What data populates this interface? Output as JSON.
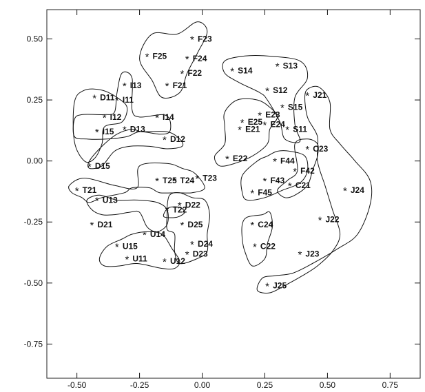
{
  "chart_data": {
    "type": "scatter",
    "title": "",
    "xlabel": "",
    "ylabel": "",
    "xlim": [
      -0.62,
      0.87
    ],
    "ylim": [
      -0.89,
      0.62
    ],
    "x_ticks": [
      {
        "value": -0.5,
        "label": "-0.50"
      },
      {
        "value": -0.25,
        "label": "-0.25"
      },
      {
        "value": 0.0,
        "label": "0.00"
      },
      {
        "value": 0.25,
        "label": "0.25"
      },
      {
        "value": 0.5,
        "label": "0.50"
      },
      {
        "value": 0.75,
        "label": "0.75"
      }
    ],
    "y_ticks": [
      {
        "value": 0.5,
        "label": "0.50"
      },
      {
        "value": 0.25,
        "label": "0.25"
      },
      {
        "value": 0.0,
        "label": "0.00"
      },
      {
        "value": -0.25,
        "label": "-0.25"
      },
      {
        "value": -0.5,
        "label": "-0.50"
      },
      {
        "value": -0.75,
        "label": "-0.75"
      }
    ],
    "grid": false,
    "marker": "*",
    "points": [
      {
        "label": "F23",
        "x": -0.04,
        "y": 0.5
      },
      {
        "label": "F25",
        "x": -0.22,
        "y": 0.43
      },
      {
        "label": "F24",
        "x": -0.06,
        "y": 0.42
      },
      {
        "label": "F22",
        "x": -0.08,
        "y": 0.36
      },
      {
        "label": "F21",
        "x": -0.14,
        "y": 0.31
      },
      {
        "label": "S14",
        "x": 0.12,
        "y": 0.37
      },
      {
        "label": "S13",
        "x": 0.3,
        "y": 0.39
      },
      {
        "label": "S12",
        "x": 0.26,
        "y": 0.29
      },
      {
        "label": "S15",
        "x": 0.32,
        "y": 0.22
      },
      {
        "label": "S11",
        "x": 0.34,
        "y": 0.13
      },
      {
        "label": "J21",
        "x": 0.42,
        "y": 0.27
      },
      {
        "label": "D11",
        "x": -0.43,
        "y": 0.26
      },
      {
        "label": "I13",
        "x": -0.31,
        "y": 0.31
      },
      {
        "label": "I11",
        "x": -0.34,
        "y": 0.25
      },
      {
        "label": "I12",
        "x": -0.39,
        "y": 0.18
      },
      {
        "label": "I14",
        "x": -0.18,
        "y": 0.18
      },
      {
        "label": "I15",
        "x": -0.42,
        "y": 0.12
      },
      {
        "label": "D13",
        "x": -0.31,
        "y": 0.13
      },
      {
        "label": "D12",
        "x": -0.15,
        "y": 0.09
      },
      {
        "label": "D15",
        "x": -0.45,
        "y": -0.02
      },
      {
        "label": "E23",
        "x": 0.23,
        "y": 0.19
      },
      {
        "label": "E25",
        "x": 0.16,
        "y": 0.16
      },
      {
        "label": "E24",
        "x": 0.25,
        "y": 0.15
      },
      {
        "label": "E21",
        "x": 0.15,
        "y": 0.13
      },
      {
        "label": "E22",
        "x": 0.1,
        "y": 0.01
      },
      {
        "label": "C23",
        "x": 0.42,
        "y": 0.05
      },
      {
        "label": "F44",
        "x": 0.29,
        "y": 0.0
      },
      {
        "label": "F42",
        "x": 0.37,
        "y": -0.04
      },
      {
        "label": "F43",
        "x": 0.25,
        "y": -0.08
      },
      {
        "label": "F45",
        "x": 0.2,
        "y": -0.13
      },
      {
        "label": "C21",
        "x": 0.35,
        "y": -0.1
      },
      {
        "label": "J24",
        "x": 0.57,
        "y": -0.12
      },
      {
        "label": "T25",
        "x": -0.18,
        "y": -0.08
      },
      {
        "label": "T24",
        "x": -0.11,
        "y": -0.08
      },
      {
        "label": "T23",
        "x": -0.02,
        "y": -0.07
      },
      {
        "label": "T21",
        "x": -0.5,
        "y": -0.12
      },
      {
        "label": "U13",
        "x": -0.42,
        "y": -0.16
      },
      {
        "label": "D22",
        "x": -0.09,
        "y": -0.18
      },
      {
        "label": "T22",
        "x": -0.14,
        "y": -0.2
      },
      {
        "label": "D21",
        "x": -0.44,
        "y": -0.26
      },
      {
        "label": "D25",
        "x": -0.08,
        "y": -0.26
      },
      {
        "label": "C24",
        "x": 0.2,
        "y": -0.26
      },
      {
        "label": "J22",
        "x": 0.47,
        "y": -0.24
      },
      {
        "label": "U14",
        "x": -0.23,
        "y": -0.3
      },
      {
        "label": "U15",
        "x": -0.34,
        "y": -0.35
      },
      {
        "label": "D24",
        "x": -0.04,
        "y": -0.34
      },
      {
        "label": "C22",
        "x": 0.21,
        "y": -0.35
      },
      {
        "label": "J23",
        "x": 0.39,
        "y": -0.38
      },
      {
        "label": "D23",
        "x": -0.06,
        "y": -0.38
      },
      {
        "label": "U11",
        "x": -0.3,
        "y": -0.4
      },
      {
        "label": "U12",
        "x": -0.15,
        "y": -0.41
      },
      {
        "label": "J25",
        "x": 0.26,
        "y": -0.51
      }
    ],
    "clusters": [
      [
        [
          -0.25,
          0.42
        ],
        [
          -0.2,
          0.52
        ],
        [
          -0.1,
          0.52
        ],
        [
          -0.02,
          0.57
        ],
        [
          0.02,
          0.53
        ],
        [
          -0.02,
          0.44
        ],
        [
          -0.06,
          0.36
        ],
        [
          -0.09,
          0.28
        ],
        [
          -0.16,
          0.26
        ],
        [
          -0.2,
          0.33
        ],
        [
          -0.25,
          0.42
        ]
      ],
      [
        [
          0.09,
          0.41
        ],
        [
          0.17,
          0.43
        ],
        [
          0.26,
          0.43
        ],
        [
          0.39,
          0.41
        ],
        [
          0.42,
          0.34
        ],
        [
          0.37,
          0.26
        ],
        [
          0.37,
          0.15
        ],
        [
          0.39,
          0.08
        ],
        [
          0.33,
          0.09
        ],
        [
          0.31,
          0.16
        ],
        [
          0.26,
          0.25
        ],
        [
          0.23,
          0.28
        ],
        [
          0.15,
          0.32
        ],
        [
          0.09,
          0.36
        ],
        [
          0.09,
          0.41
        ]
      ],
      [
        [
          -0.51,
          0.24
        ],
        [
          -0.47,
          0.29
        ],
        [
          -0.4,
          0.29
        ],
        [
          -0.34,
          0.26
        ],
        [
          -0.3,
          0.22
        ],
        [
          -0.32,
          0.16
        ],
        [
          -0.39,
          0.14
        ],
        [
          -0.4,
          0.07
        ],
        [
          -0.43,
          0.01
        ],
        [
          -0.47,
          0.0
        ],
        [
          -0.51,
          0.08
        ],
        [
          -0.51,
          0.24
        ]
      ],
      [
        [
          -0.51,
          0.17
        ],
        [
          -0.48,
          0.19
        ],
        [
          -0.39,
          0.19
        ],
        [
          -0.35,
          0.2
        ],
        [
          -0.34,
          0.28
        ],
        [
          -0.32,
          0.36
        ],
        [
          -0.28,
          0.34
        ],
        [
          -0.28,
          0.21
        ],
        [
          -0.25,
          0.18
        ],
        [
          -0.16,
          0.19
        ],
        [
          -0.13,
          0.17
        ],
        [
          -0.13,
          0.12
        ],
        [
          -0.17,
          0.11
        ],
        [
          -0.25,
          0.12
        ],
        [
          -0.3,
          0.1
        ],
        [
          -0.38,
          0.09
        ],
        [
          -0.46,
          0.09
        ],
        [
          -0.51,
          0.1
        ],
        [
          -0.51,
          0.17
        ]
      ],
      [
        [
          -0.45,
          0.0
        ],
        [
          -0.4,
          0.06
        ],
        [
          -0.34,
          0.11
        ],
        [
          -0.28,
          0.13
        ],
        [
          -0.24,
          0.12
        ],
        [
          -0.14,
          0.12
        ],
        [
          -0.09,
          0.09
        ],
        [
          -0.08,
          0.06
        ],
        [
          -0.14,
          0.05
        ],
        [
          -0.21,
          0.06
        ],
        [
          -0.29,
          0.06
        ],
        [
          -0.35,
          0.04
        ],
        [
          -0.4,
          -0.02
        ],
        [
          -0.45,
          -0.03
        ],
        [
          -0.45,
          0.0
        ]
      ],
      [
        [
          0.09,
          0.2
        ],
        [
          0.14,
          0.25
        ],
        [
          0.22,
          0.25
        ],
        [
          0.27,
          0.22
        ],
        [
          0.3,
          0.18
        ],
        [
          0.27,
          0.13
        ],
        [
          0.26,
          0.07
        ],
        [
          0.2,
          0.02
        ],
        [
          0.13,
          -0.01
        ],
        [
          0.07,
          -0.02
        ],
        [
          0.05,
          0.02
        ],
        [
          0.09,
          0.07
        ],
        [
          0.09,
          0.14
        ],
        [
          0.09,
          0.2
        ]
      ],
      [
        [
          0.16,
          -0.06
        ],
        [
          0.22,
          0.0
        ],
        [
          0.26,
          0.02
        ],
        [
          0.3,
          0.04
        ],
        [
          0.35,
          0.04
        ],
        [
          0.41,
          0.02
        ],
        [
          0.42,
          -0.04
        ],
        [
          0.39,
          -0.09
        ],
        [
          0.32,
          -0.12
        ],
        [
          0.25,
          -0.15
        ],
        [
          0.18,
          -0.16
        ],
        [
          0.16,
          -0.13
        ],
        [
          0.16,
          -0.06
        ]
      ],
      [
        [
          0.37,
          0.07
        ],
        [
          0.42,
          0.09
        ],
        [
          0.46,
          0.07
        ],
        [
          0.46,
          0.02
        ],
        [
          0.44,
          -0.04
        ],
        [
          0.42,
          -0.1
        ],
        [
          0.37,
          -0.14
        ],
        [
          0.33,
          -0.15
        ],
        [
          0.3,
          -0.12
        ],
        [
          0.34,
          -0.08
        ],
        [
          0.38,
          -0.04
        ],
        [
          0.37,
          0.07
        ]
      ],
      [
        [
          0.41,
          0.27
        ],
        [
          0.43,
          0.3
        ],
        [
          0.47,
          0.3
        ],
        [
          0.51,
          0.24
        ],
        [
          0.51,
          0.13
        ],
        [
          0.55,
          0.07
        ],
        [
          0.61,
          0.0
        ],
        [
          0.67,
          -0.08
        ],
        [
          0.67,
          -0.18
        ],
        [
          0.62,
          -0.3
        ],
        [
          0.54,
          -0.36
        ],
        [
          0.44,
          -0.42
        ],
        [
          0.36,
          -0.46
        ],
        [
          0.29,
          -0.47
        ],
        [
          0.24,
          -0.48
        ],
        [
          0.22,
          -0.53
        ],
        [
          0.27,
          -0.54
        ],
        [
          0.33,
          -0.51
        ],
        [
          0.4,
          -0.47
        ],
        [
          0.46,
          -0.43
        ],
        [
          0.52,
          -0.37
        ],
        [
          0.55,
          -0.3
        ],
        [
          0.52,
          -0.2
        ],
        [
          0.49,
          -0.1
        ],
        [
          0.46,
          0.0
        ],
        [
          0.46,
          0.1
        ],
        [
          0.42,
          0.18
        ],
        [
          0.41,
          0.27
        ]
      ],
      [
        [
          -0.53,
          -0.1
        ],
        [
          -0.47,
          -0.07
        ],
        [
          -0.35,
          -0.1
        ],
        [
          -0.26,
          -0.11
        ],
        [
          -0.25,
          -0.02
        ],
        [
          -0.14,
          -0.01
        ],
        [
          -0.08,
          -0.03
        ],
        [
          -0.03,
          -0.05
        ],
        [
          0.01,
          -0.11
        ],
        [
          -0.04,
          -0.13
        ],
        [
          -0.1,
          -0.13
        ],
        [
          -0.17,
          -0.13
        ],
        [
          -0.21,
          -0.11
        ],
        [
          -0.28,
          -0.11
        ],
        [
          -0.31,
          -0.13
        ],
        [
          -0.4,
          -0.15
        ],
        [
          -0.45,
          -0.17
        ],
        [
          -0.48,
          -0.15
        ],
        [
          -0.52,
          -0.13
        ],
        [
          -0.53,
          -0.1
        ]
      ],
      [
        [
          -0.14,
          -0.19
        ],
        [
          -0.13,
          -0.14
        ],
        [
          -0.09,
          -0.13
        ],
        [
          -0.04,
          -0.15
        ],
        [
          0.01,
          -0.16
        ],
        [
          0.03,
          -0.22
        ],
        [
          0.02,
          -0.3
        ],
        [
          0.02,
          -0.37
        ],
        [
          -0.02,
          -0.4
        ],
        [
          -0.09,
          -0.42
        ],
        [
          -0.11,
          -0.37
        ],
        [
          -0.11,
          -0.3
        ],
        [
          -0.14,
          -0.28
        ],
        [
          -0.14,
          -0.22
        ],
        [
          -0.14,
          -0.19
        ]
      ],
      [
        [
          -0.15,
          -0.21
        ],
        [
          -0.13,
          -0.19
        ],
        [
          -0.09,
          -0.19
        ],
        [
          -0.07,
          -0.21
        ],
        [
          -0.1,
          -0.23
        ],
        [
          -0.15,
          -0.23
        ],
        [
          -0.15,
          -0.21
        ]
      ],
      [
        [
          -0.46,
          -0.16
        ],
        [
          -0.41,
          -0.14
        ],
        [
          -0.34,
          -0.16
        ],
        [
          -0.26,
          -0.16
        ],
        [
          -0.18,
          -0.17
        ],
        [
          -0.14,
          -0.2
        ],
        [
          -0.14,
          -0.26
        ],
        [
          -0.18,
          -0.29
        ],
        [
          -0.22,
          -0.27
        ],
        [
          -0.25,
          -0.21
        ],
        [
          -0.29,
          -0.21
        ],
        [
          -0.35,
          -0.22
        ],
        [
          -0.4,
          -0.22
        ],
        [
          -0.44,
          -0.2
        ],
        [
          -0.46,
          -0.16
        ]
      ],
      [
        [
          -0.28,
          -0.3
        ],
        [
          -0.22,
          -0.29
        ],
        [
          -0.16,
          -0.3
        ],
        [
          -0.12,
          -0.36
        ],
        [
          -0.09,
          -0.41
        ],
        [
          -0.11,
          -0.44
        ],
        [
          -0.16,
          -0.44
        ],
        [
          -0.26,
          -0.42
        ],
        [
          -0.33,
          -0.43
        ],
        [
          -0.39,
          -0.43
        ],
        [
          -0.41,
          -0.4
        ],
        [
          -0.38,
          -0.35
        ],
        [
          -0.32,
          -0.32
        ],
        [
          -0.28,
          -0.3
        ]
      ],
      [
        [
          0.16,
          -0.26
        ],
        [
          0.18,
          -0.23
        ],
        [
          0.24,
          -0.22
        ],
        [
          0.27,
          -0.21
        ],
        [
          0.28,
          -0.27
        ],
        [
          0.26,
          -0.34
        ],
        [
          0.25,
          -0.4
        ],
        [
          0.2,
          -0.43
        ],
        [
          0.17,
          -0.37
        ],
        [
          0.16,
          -0.32
        ],
        [
          0.16,
          -0.26
        ]
      ]
    ]
  }
}
